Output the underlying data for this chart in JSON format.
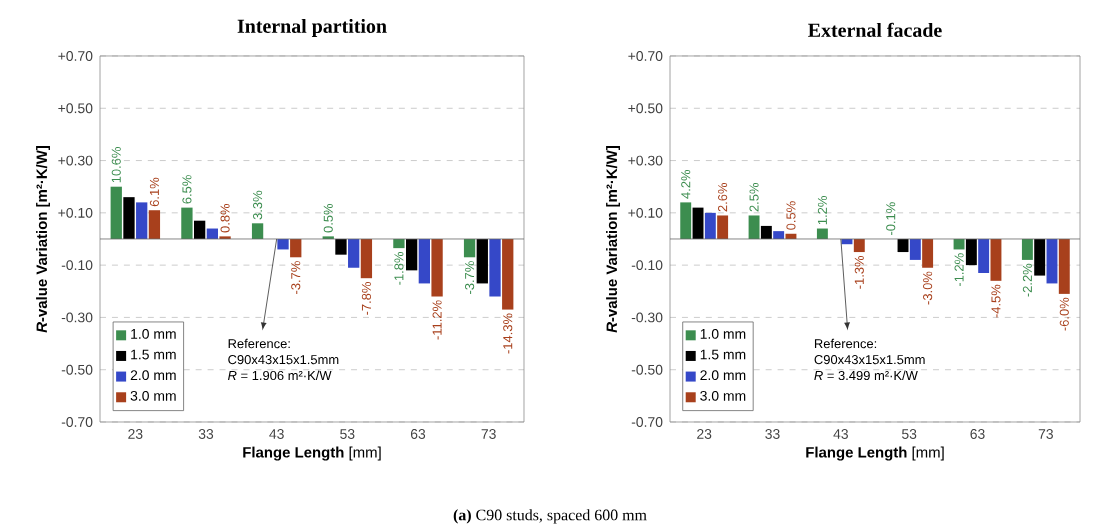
{
  "chart_data": [
    {
      "type": "bar",
      "title": "Internal partition",
      "xlabel": "**Flange Length** [mm]",
      "ylabel": "*R*-value Variation  [m²·K/W]",
      "categories": [
        "23",
        "33",
        "43",
        "53",
        "63",
        "73"
      ],
      "series": [
        {
          "name": "1.0 mm",
          "color": "#3c8d4f",
          "values": [
            0.2,
            0.12,
            0.06,
            0.01,
            -0.035,
            -0.07
          ]
        },
        {
          "name": "1.5 mm",
          "color": "#000000",
          "values": [
            0.16,
            0.07,
            0,
            -0.06,
            -0.12,
            -0.17
          ]
        },
        {
          "name": "2.0 mm",
          "color": "#3548c8",
          "values": [
            0.14,
            0.04,
            -0.04,
            -0.11,
            -0.17,
            -0.22
          ]
        },
        {
          "name": "3.0 mm",
          "color": "#a8401c",
          "values": [
            0.11,
            0.01,
            -0.07,
            -0.15,
            -0.22,
            -0.27
          ]
        }
      ],
      "ylim": [
        -0.7,
        0.7
      ],
      "yticks": [
        {
          "value": -0.7,
          "label": "-0.70"
        },
        {
          "value": -0.5,
          "label": "-0.50"
        },
        {
          "value": -0.3,
          "label": "-0.30"
        },
        {
          "value": -0.1,
          "label": "-0.10"
        },
        {
          "value": 0.1,
          "label": "+0.10"
        },
        {
          "value": 0.3,
          "label": "+0.30"
        },
        {
          "value": 0.5,
          "label": "+0.50"
        },
        {
          "value": 0.7,
          "label": "+0.70"
        }
      ],
      "grid": "y",
      "legend": "bottom left",
      "annotations": [
        {
          "text": "Reference:",
          "x": "43",
          "y": 0
        },
        "C90x43x15x1.5mm",
        "*R* = 1.906 m²·K/W",
        "10.6%",
        "6.5%",
        "3.3%",
        "0.5%",
        "-1.8%",
        "-3.7%",
        "6.1%",
        "0.8%",
        "-3.7%",
        "-7.8%",
        "-11.2%",
        "-14.3%",
        "**(a)** C90 studs, spaced 600 mm"
      ]
    },
    {
      "type": "bar",
      "title": "External facade",
      "xlabel": "**Flange Length** [mm]",
      "ylabel": "*R*-value Variation  [m²·K/W]",
      "categories": [
        "23",
        "33",
        "43",
        "53",
        "63",
        "73"
      ],
      "series": [
        {
          "name": "1.0 mm",
          "color": "#3c8d4f",
          "values": [
            0.14,
            0.09,
            0.04,
            0,
            -0.04,
            -0.08
          ]
        },
        {
          "name": "1.5 mm",
          "color": "#000000",
          "values": [
            0.12,
            0.05,
            0,
            -0.05,
            -0.1,
            -0.14
          ]
        },
        {
          "name": "2.0 mm",
          "color": "#3548c8",
          "values": [
            0.1,
            0.03,
            -0.02,
            -0.08,
            -0.13,
            -0.17
          ]
        },
        {
          "name": "3.0 mm",
          "color": "#a8401c",
          "values": [
            0.09,
            0.02,
            -0.05,
            -0.11,
            -0.16,
            -0.21
          ]
        }
      ],
      "ylim": [
        -0.7,
        0.7
      ],
      "yticks": [
        {
          "value": -0.7,
          "label": "-0.70"
        },
        {
          "value": -0.5,
          "label": "-0.50"
        },
        {
          "value": -0.3,
          "label": "-0.30"
        },
        {
          "value": -0.1,
          "label": "-0.10"
        },
        {
          "value": 0.1,
          "label": "+0.10"
        },
        {
          "value": 0.3,
          "label": "+0.30"
        },
        {
          "value": 0.5,
          "label": "+0.50"
        },
        {
          "value": 0.7,
          "label": "+0.70"
        }
      ],
      "grid": "y",
      "legend": "bottom left",
      "annotations": [
        {
          "text": "Reference:",
          "x": "43",
          "y": 0
        },
        "C90x43x15x1.5mm",
        "*R* = 3.499 m²·K/W",
        "4.2%",
        "2.5%",
        "1.2%",
        "-0.1%",
        "-1.2%",
        "-2.2%",
        "2.6%",
        "0.5%",
        "-1.3%",
        "-3.0%",
        "-4.5%",
        "-6.0%"
      ]
    }
  ]
}
